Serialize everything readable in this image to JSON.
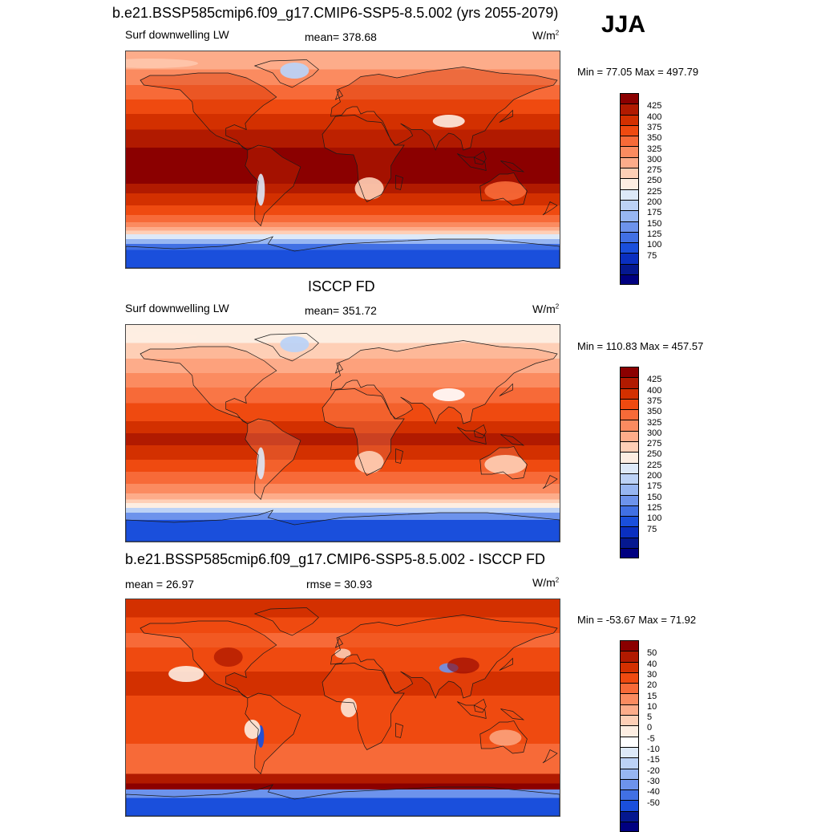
{
  "season": "JJA",
  "panels": [
    {
      "title": "b.e21.BSSP585cmip6.f09_g17.CMIP6-SSP5-8.5.002 (yrs 2055-2079)",
      "left_label": "Surf downwelling LW",
      "center_label": "mean= 378.68",
      "units": "W/m",
      "units_sup": "2",
      "minmax": "Min =  77.05 Max = 497.79",
      "kind": "model",
      "colorbar": {
        "colors": [
          "#8b0000",
          "#b11a00",
          "#d33000",
          "#ef4a10",
          "#f76a38",
          "#fb8b60",
          "#fdac8a",
          "#fecfb6",
          "#fdeee2",
          "#dde9f8",
          "#bcd2f6",
          "#97b6f2",
          "#6d93ec",
          "#4170e4",
          "#1a4fdc",
          "#0a2fc0",
          "#05188f",
          "#000080"
        ],
        "labels": [
          "425",
          "400",
          "375",
          "350",
          "325",
          "300",
          "275",
          "250",
          "225",
          "200",
          "175",
          "150",
          "125",
          "100",
          "75"
        ]
      }
    },
    {
      "title": "ISCCP FD",
      "left_label": "Surf downwelling LW",
      "center_label": "mean= 351.72",
      "units": "W/m",
      "units_sup": "2",
      "minmax": "Min = 110.83 Max = 457.57",
      "kind": "obs",
      "colorbar": {
        "colors": [
          "#8b0000",
          "#b11a00",
          "#d33000",
          "#ef4a10",
          "#f76a38",
          "#fb8b60",
          "#fdac8a",
          "#fecfb6",
          "#fdeee2",
          "#dde9f8",
          "#bcd2f6",
          "#97b6f2",
          "#6d93ec",
          "#4170e4",
          "#1a4fdc",
          "#0a2fc0",
          "#05188f",
          "#000080"
        ],
        "labels": [
          "425",
          "400",
          "375",
          "350",
          "325",
          "300",
          "275",
          "250",
          "225",
          "200",
          "175",
          "150",
          "125",
          "100",
          "75"
        ]
      }
    },
    {
      "title": "b.e21.BSSP585cmip6.f09_g17.CMIP6-SSP5-8.5.002 - ISCCP FD",
      "left_label": "mean =  26.97",
      "center_label": "rmse =  30.93",
      "units": "W/m",
      "units_sup": "2",
      "minmax": "Min = -53.67 Max =  71.92",
      "kind": "diff",
      "colorbar": {
        "colors": [
          "#8b0000",
          "#b11a00",
          "#d33000",
          "#ef4a10",
          "#f76a38",
          "#fb8b60",
          "#fdac8a",
          "#fecfb6",
          "#fdeee2",
          "#ffffff",
          "#dde9f8",
          "#bcd2f6",
          "#97b6f2",
          "#6d93ec",
          "#4170e4",
          "#1a4fdc",
          "#05188f",
          "#000080"
        ],
        "labels": [
          "50",
          "40",
          "30",
          "20",
          "15",
          "10",
          "5",
          "0",
          "-5",
          "-10",
          "-15",
          "-20",
          "-30",
          "-40",
          "-50"
        ]
      }
    }
  ]
}
